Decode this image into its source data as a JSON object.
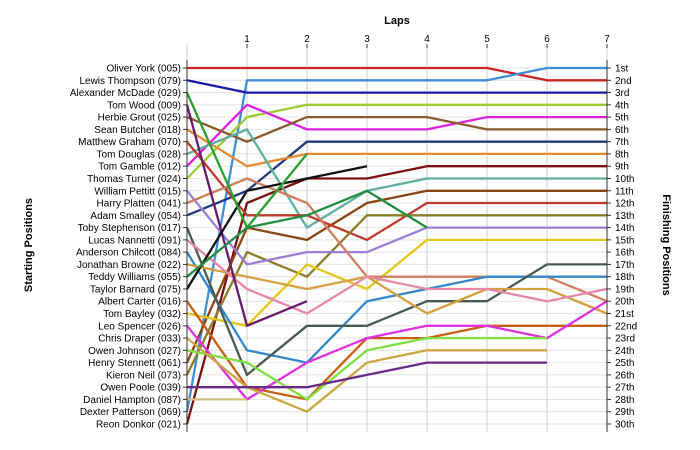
{
  "chart_data": {
    "type": "line",
    "title": "",
    "xlabel": "Laps",
    "ylabel_left": "Starting Positions",
    "ylabel_right": "Finishing Positions",
    "x": [
      0,
      1,
      2,
      3,
      4,
      5,
      6,
      7
    ],
    "x_tick_labels": [
      "1",
      "2",
      "3",
      "4",
      "5",
      "6",
      "7"
    ],
    "y_inverted": true,
    "ylim": [
      1,
      30
    ],
    "starting_labels": [
      "Oliver York (005)",
      "Lewis Thompson (079)",
      "Alexander McDade (029)",
      "Tom Wood (009)",
      "Herbie Grout (025)",
      "Sean Butcher (018)",
      "Matthew Graham (070)",
      "Tom Douglas (028)",
      "Tom Gamble (012)",
      "Thomas Turner (024)",
      "William Pettitt (015)",
      "Harry Platten (041)",
      "Adam Smalley (054)",
      "Toby Stephenson (017)",
      "Lucas Nannetti (091)",
      "Anderson Chilcott (084)",
      "Jonathan Browne (022)",
      "Teddy Williams (055)",
      "Taylor Barnard (075)",
      "Albert Carter (016)",
      "Tom Bayley (032)",
      "Leo Spencer (026)",
      "Chris Draper (033)",
      "Owen Johnson (027)",
      "Henry Stennett (061)",
      "Kieron Neil (073)",
      "Owen Poole (039)",
      "Daniel Hampton (087)",
      "Dexter Patterson (069)",
      "Reon Donkor (021)"
    ],
    "finishing_labels": [
      "1st",
      "2nd",
      "3rd",
      "4th",
      "5th",
      "6th",
      "7th",
      "8th",
      "9th",
      "10th",
      "11th",
      "12th",
      "13th",
      "14th",
      "15th",
      "16th",
      "17th",
      "18th",
      "19th",
      "20th",
      "21st",
      "22nd",
      "23rd",
      "24th",
      "25th",
      "26th",
      "27th",
      "28th",
      "29th",
      "30th"
    ],
    "series": [
      {
        "color": "#cc2222",
        "values": [
          1,
          1,
          1,
          1,
          1,
          1,
          2,
          2
        ]
      },
      {
        "color": "#3d8fd6",
        "values": [
          29,
          2,
          2,
          2,
          2,
          2,
          1,
          1
        ]
      },
      {
        "color": "#1a1aa8",
        "values": [
          2,
          3,
          3,
          3,
          3,
          3,
          3,
          3
        ]
      },
      {
        "color": "#9acd32",
        "values": [
          10,
          5,
          4,
          4,
          4,
          4,
          4,
          4
        ]
      },
      {
        "color": "#e020e0",
        "values": [
          9,
          4,
          6,
          6,
          6,
          5,
          5,
          5
        ]
      },
      {
        "color": "#8b5a2b",
        "values": [
          5,
          7,
          5,
          5,
          5,
          6,
          6,
          6
        ]
      },
      {
        "color": "#1f3b7a",
        "values": [
          13,
          11,
          7,
          7,
          7,
          7,
          7,
          7
        ]
      },
      {
        "color": "#e68a2e",
        "values": [
          6,
          9,
          8,
          8,
          8,
          8,
          8,
          8
        ]
      },
      {
        "color": "#7a1010",
        "values": [
          30,
          12,
          10,
          10,
          9,
          9,
          9,
          9
        ]
      },
      {
        "color": "#5fae9e",
        "values": [
          8,
          6,
          14,
          11,
          10,
          10,
          10,
          10
        ]
      },
      {
        "color": "#8b4513",
        "values": [
          25,
          14,
          15,
          12,
          11,
          11,
          11,
          11
        ]
      },
      {
        "color": "#c0392b",
        "values": [
          7,
          13,
          13,
          15,
          12,
          12,
          12,
          12
        ]
      },
      {
        "color": "#8b7d2a",
        "values": [
          26,
          16,
          18,
          13,
          13,
          13,
          13,
          13
        ]
      },
      {
        "color": "#9b7ed6",
        "values": [
          11,
          17,
          16,
          16,
          14,
          14,
          14,
          14
        ]
      },
      {
        "color": "#e6c619",
        "values": [
          21,
          22,
          17,
          19,
          15,
          15,
          15,
          15
        ]
      },
      {
        "color": "#d08060",
        "values": [
          12,
          10,
          12,
          18,
          18,
          18,
          18,
          20
        ]
      },
      {
        "color": "#3388cc",
        "values": [
          16,
          24,
          25,
          20,
          19,
          18,
          18,
          18
        ]
      },
      {
        "color": "#475a52",
        "values": [
          14,
          26,
          22,
          22,
          20,
          20,
          17,
          17
        ]
      },
      {
        "color": "#d4a040",
        "values": [
          17,
          18,
          19,
          18,
          21,
          19,
          19,
          21
        ]
      },
      {
        "color": "#e888a8",
        "values": [
          15,
          19,
          21,
          18,
          19,
          19,
          20,
          19
        ]
      },
      {
        "color": "#c85e10",
        "values": [
          20,
          27,
          28,
          23,
          23,
          22,
          22,
          22
        ]
      },
      {
        "color": "#e030e0",
        "values": [
          22,
          28,
          25,
          23,
          22,
          22,
          23,
          20
        ]
      },
      {
        "color": "#7fe040",
        "values": [
          24,
          25,
          28,
          24,
          23,
          23,
          23,
          null
        ]
      },
      {
        "color": "#c8a840",
        "values": [
          23,
          27,
          29,
          25,
          24,
          24,
          24,
          null
        ]
      },
      {
        "color": "#6a2a8a",
        "values": [
          27,
          27,
          27,
          26,
          25,
          25,
          25,
          null
        ]
      },
      {
        "color": "#6a1a6a",
        "values": [
          4,
          22,
          20,
          null,
          null,
          null,
          null,
          null
        ]
      },
      {
        "color": "#111111",
        "values": [
          19,
          11,
          10,
          9,
          null,
          null,
          null,
          null
        ]
      },
      {
        "color": "#2e9e2e",
        "values": [
          3,
          14,
          8,
          null,
          null,
          null,
          null,
          null
        ]
      },
      {
        "color": "#1f8f3f",
        "values": [
          18,
          14,
          13,
          11,
          14,
          null,
          null,
          null
        ]
      },
      {
        "color": "#d0c080",
        "values": [
          28,
          28,
          null,
          null,
          null,
          null,
          null,
          null
        ]
      }
    ]
  }
}
